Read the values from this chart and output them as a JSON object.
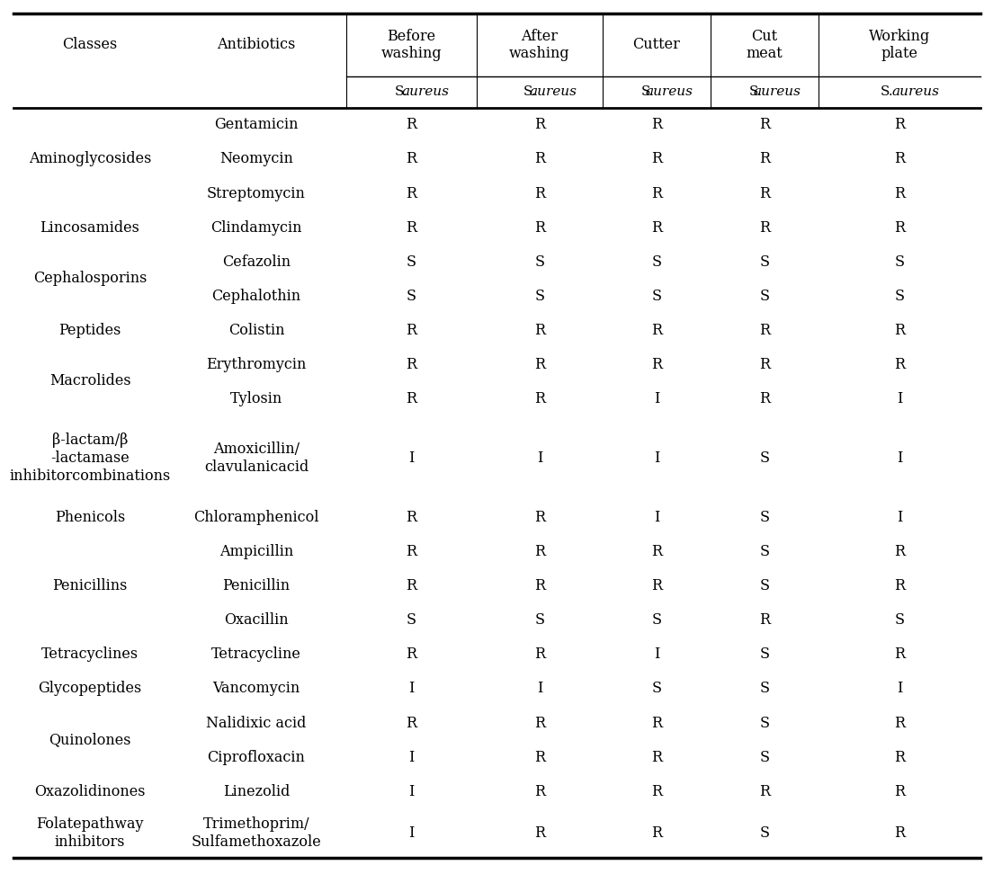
{
  "col_headers_line1": [
    "Classes",
    "Antibiotics",
    "Before\nwashing",
    "After\nwashing",
    "Cutter",
    "Cut\nmeat",
    "Working\nplate"
  ],
  "rows": [
    [
      "Aminoglycosides",
      "Gentamicin",
      "R",
      "R",
      "R",
      "R",
      "R"
    ],
    [
      "Aminoglycosides",
      "Neomycin",
      "R",
      "R",
      "R",
      "R",
      "R"
    ],
    [
      "Aminoglycosides",
      "Streptomycin",
      "R",
      "R",
      "R",
      "R",
      "R"
    ],
    [
      "Lincosamides",
      "Clindamycin",
      "R",
      "R",
      "R",
      "R",
      "R"
    ],
    [
      "Cephalosporins",
      "Cefazolin",
      "S",
      "S",
      "S",
      "S",
      "S"
    ],
    [
      "Cephalosporins",
      "Cephalothin",
      "S",
      "S",
      "S",
      "S",
      "S"
    ],
    [
      "Peptides",
      "Colistin",
      "R",
      "R",
      "R",
      "R",
      "R"
    ],
    [
      "Macrolides",
      "Erythromycin",
      "R",
      "R",
      "R",
      "R",
      "R"
    ],
    [
      "Macrolides",
      "Tylosin",
      "R",
      "R",
      "I",
      "R",
      "I"
    ],
    [
      "β-lactam/β\n-lactamase\ninhibitorcombinations",
      "Amoxicillin/\nclavulanicacid",
      "I",
      "I",
      "I",
      "S",
      "I"
    ],
    [
      "Phenicols",
      "Chloramphenicol",
      "R",
      "R",
      "I",
      "S",
      "I"
    ],
    [
      "Penicillins",
      "Ampicillin",
      "R",
      "R",
      "R",
      "S",
      "R"
    ],
    [
      "Penicillins",
      "Penicillin",
      "R",
      "R",
      "R",
      "S",
      "R"
    ],
    [
      "Penicillins",
      "Oxacillin",
      "S",
      "S",
      "S",
      "R",
      "S"
    ],
    [
      "Tetracyclines",
      "Tetracycline",
      "R",
      "R",
      "I",
      "S",
      "R"
    ],
    [
      "Glycopeptides",
      "Vancomycin",
      "I",
      "I",
      "S",
      "S",
      "I"
    ],
    [
      "Quinolones",
      "Nalidixic acid",
      "R",
      "R",
      "R",
      "S",
      "R"
    ],
    [
      "Quinolones",
      "Ciprofloxacin",
      "I",
      "R",
      "R",
      "S",
      "R"
    ],
    [
      "Oxazolidinones",
      "Linezolid",
      "I",
      "R",
      "R",
      "R",
      "R"
    ],
    [
      "Folatepathway\ninhibitors",
      "Trimethoprim/\nSulfamethoxazole",
      "I",
      "R",
      "R",
      "S",
      "R"
    ]
  ],
  "class_groups": {
    "Aminoglycosides": [
      0,
      1,
      2
    ],
    "Lincosamides": [
      3
    ],
    "Cephalosporins": [
      4,
      5
    ],
    "Peptides": [
      6
    ],
    "Macrolides": [
      7,
      8
    ],
    "β-lactam/β\n-lactamase\ninhibitorcombinations": [
      9
    ],
    "Phenicols": [
      10
    ],
    "Penicillins": [
      11,
      12,
      13
    ],
    "Tetracyclines": [
      14
    ],
    "Glycopeptides": [
      15
    ],
    "Quinolones": [
      16,
      17
    ],
    "Oxazolidinones": [
      18
    ],
    "Folatepathway\ninhibitors": [
      19
    ]
  },
  "bg_color": "#ffffff",
  "font_size": 11.5
}
